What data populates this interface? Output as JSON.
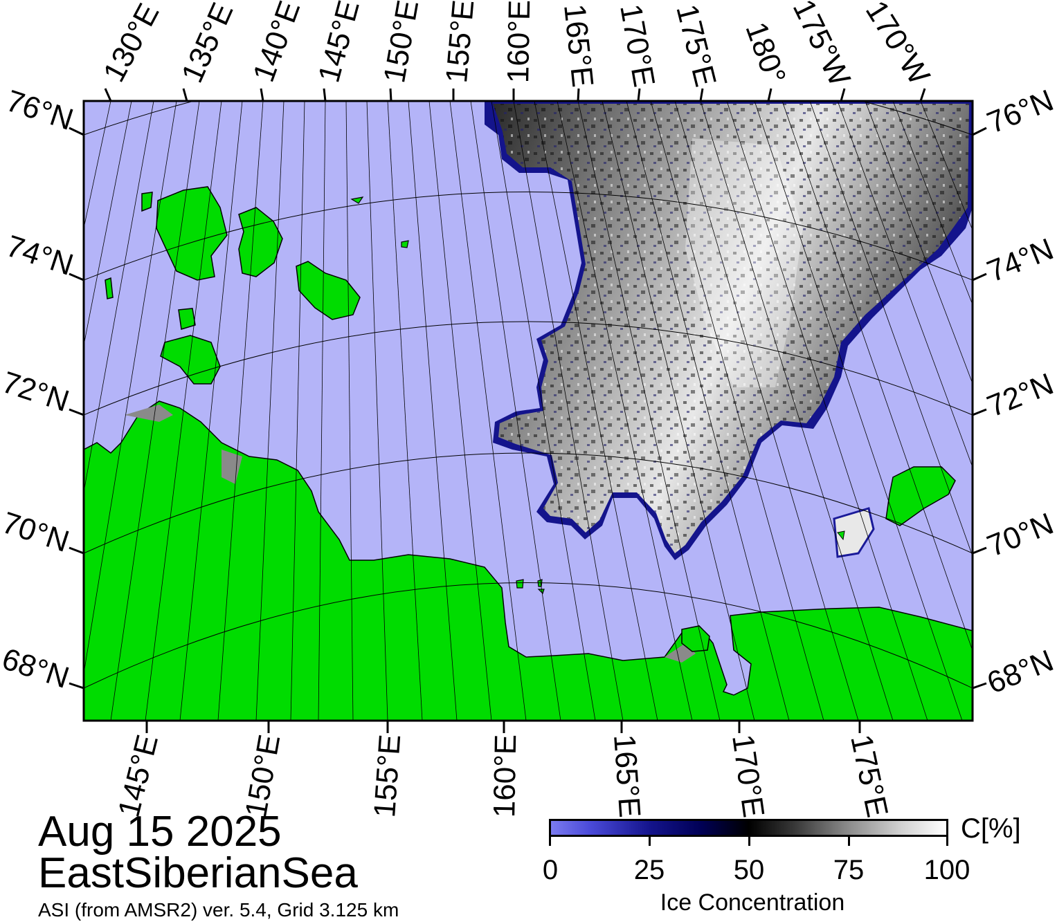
{
  "date": "Aug 15 2025",
  "region": "EastSiberianSea",
  "source": "ASI (from AMSR2) ver. 5.4,  Grid 3.125 km",
  "colorbar": {
    "title": "Ice Concentration",
    "unit": "C[%]",
    "ticks": [
      "0",
      "25",
      "50",
      "75",
      "100"
    ],
    "range": [
      0,
      100
    ]
  },
  "lat_labels": [
    "76°N",
    "74°N",
    "72°N",
    "70°N",
    "68°N"
  ],
  "top_lon_labels": [
    "130°E",
    "135°E",
    "140°E",
    "145°E",
    "150°E",
    "155°E",
    "160°E",
    "165°E",
    "170°E",
    "175°E",
    "180°",
    "175°W",
    "170°W"
  ],
  "bottom_lon_labels": [
    "145°E",
    "150°E",
    "155°E",
    "160°E",
    "165°E",
    "170°E",
    "175°E"
  ],
  "colors": {
    "water": "#b4b4f8",
    "land": "#00dc00",
    "coast_gray": "#8a8a8a",
    "ice_low": "#1a1a99",
    "ice_high": "#ffffff"
  }
}
